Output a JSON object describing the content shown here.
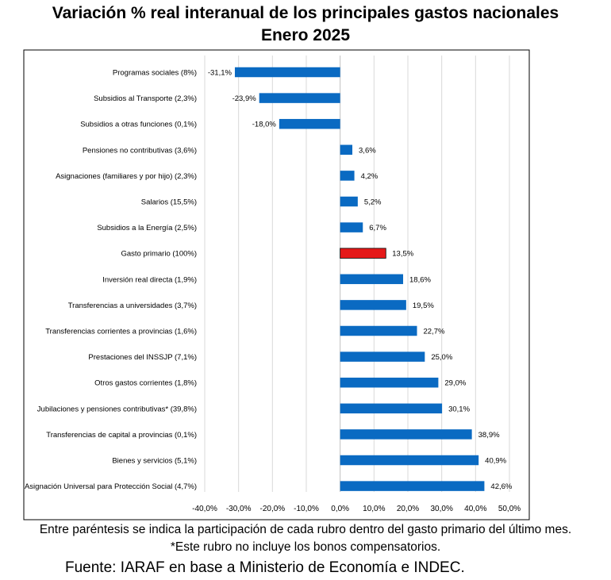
{
  "header": {
    "title": "Variación % real interanual de los principales gastos nacionales",
    "subtitle": "Enero 2025"
  },
  "footer": {
    "note1": "Entre paréntesis se indica la participación de cada rubro dentro del gasto primario del último mes.",
    "note2": "*Este rubro no incluye los bonos compensatorios.",
    "source": "Fuente: IARAF en base a Ministerio de Economía e INDEC."
  },
  "colors": {
    "bar": "#0a6ac2",
    "highlight": "#e51919",
    "grid": "#d9d9d9"
  },
  "chart_data": {
    "type": "bar",
    "orientation": "horizontal",
    "title": "Variación % real interanual de los principales gastos nacionales",
    "subtitle": "Enero 2025",
    "categories": [
      "Programas sociales (8%)",
      "Subsidios al Transporte (2,3%)",
      "Subsidios a otras funciones (0,1%)",
      "Pensiones no contributivas (3,6%)",
      "Asignaciones (familiares y por hijo) (2,3%)",
      "Salarios (15,5%)",
      "Subsidios a la Energía (2,5%)",
      "Gasto primario (100%)",
      "Inversión real directa (1,9%)",
      "Transferencias a universidades (3,7%)",
      "Transferencias corrientes a provincias (1,6%)",
      "Prestaciones del INSSJP (7,1%)",
      "Otros gastos corrientes (1,8%)",
      "Jubilaciones y pensiones contributivas* (39,8%)",
      "Transferencias de capital a provincias (0,1%)",
      "Bienes y servicios (5,1%)",
      "Asignación Universal para Protección Social (4,7%)"
    ],
    "values": [
      -31.1,
      -23.9,
      -18.0,
      3.6,
      4.2,
      5.2,
      6.7,
      13.5,
      18.6,
      19.5,
      22.7,
      25.0,
      29.0,
      30.1,
      38.9,
      40.9,
      42.6
    ],
    "data_labels": [
      "-31,1%",
      "-23,9%",
      "-18,0%",
      "3,6%",
      "4,2%",
      "5,2%",
      "6,7%",
      "13,5%",
      "18,6%",
      "19,5%",
      "22,7%",
      "25,0%",
      "29,0%",
      "30,1%",
      "38,9%",
      "40,9%",
      "42,6%"
    ],
    "highlight_category": "Gasto primario (100%)",
    "xlim": [
      -40,
      50
    ],
    "x_ticks": [
      -40,
      -30,
      -20,
      -10,
      0,
      10,
      20,
      30,
      40,
      50
    ],
    "x_tick_labels": [
      "-40,0%",
      "-30,0%",
      "-20,0%",
      "-10,0%",
      "0,0%",
      "10,0%",
      "20,0%",
      "30,0%",
      "40,0%",
      "50,0%"
    ],
    "grid": "vertical",
    "legend": "none"
  }
}
